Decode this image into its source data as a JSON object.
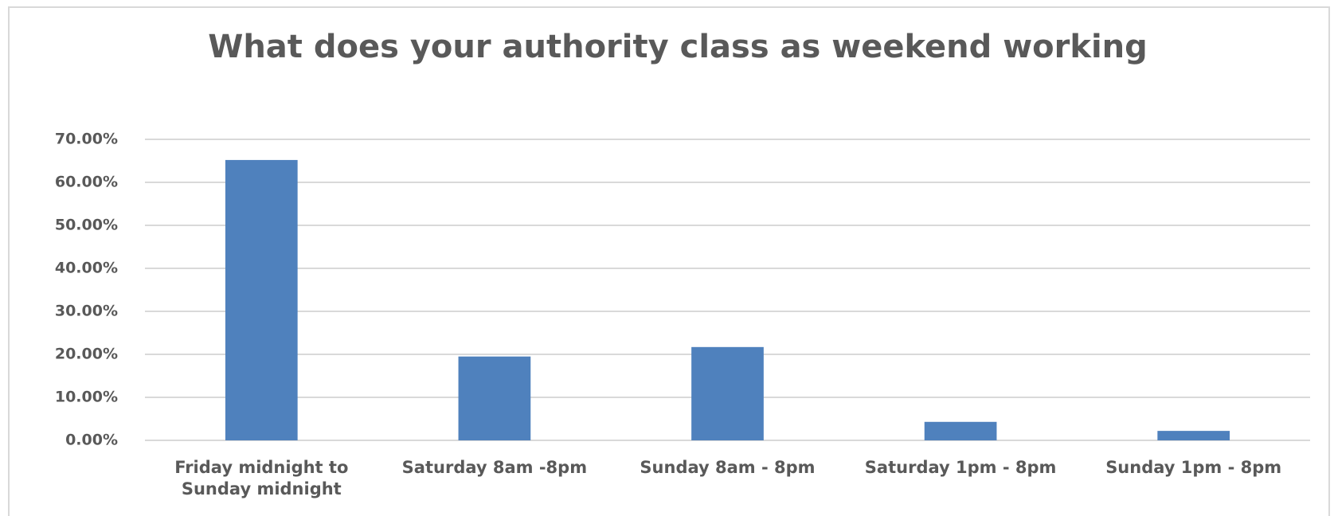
{
  "chart_data": {
    "type": "bar",
    "title": "What does your authority class as weekend working",
    "categories": [
      "Friday midnight to Sunday midnight",
      "Saturday 8am -8pm",
      "Sunday 8am - 8pm",
      "Saturday 1pm - 8pm",
      "Sunday 1pm - 8pm"
    ],
    "values": [
      65.2,
      19.5,
      21.7,
      4.3,
      2.2
    ],
    "color": "#4f81bd",
    "ylim": [
      0,
      70
    ],
    "yticks": [
      {
        "value": 0,
        "label": "0.00%"
      },
      {
        "value": 10,
        "label": "10.00%"
      },
      {
        "value": 20,
        "label": "20.00%"
      },
      {
        "value": 30,
        "label": "30.00%"
      },
      {
        "value": 40,
        "label": "40.00%"
      },
      {
        "value": 50,
        "label": "50.00%"
      },
      {
        "value": 60,
        "label": "60.00%"
      },
      {
        "value": 70,
        "label": "70.00%"
      }
    ],
    "grid": true
  }
}
